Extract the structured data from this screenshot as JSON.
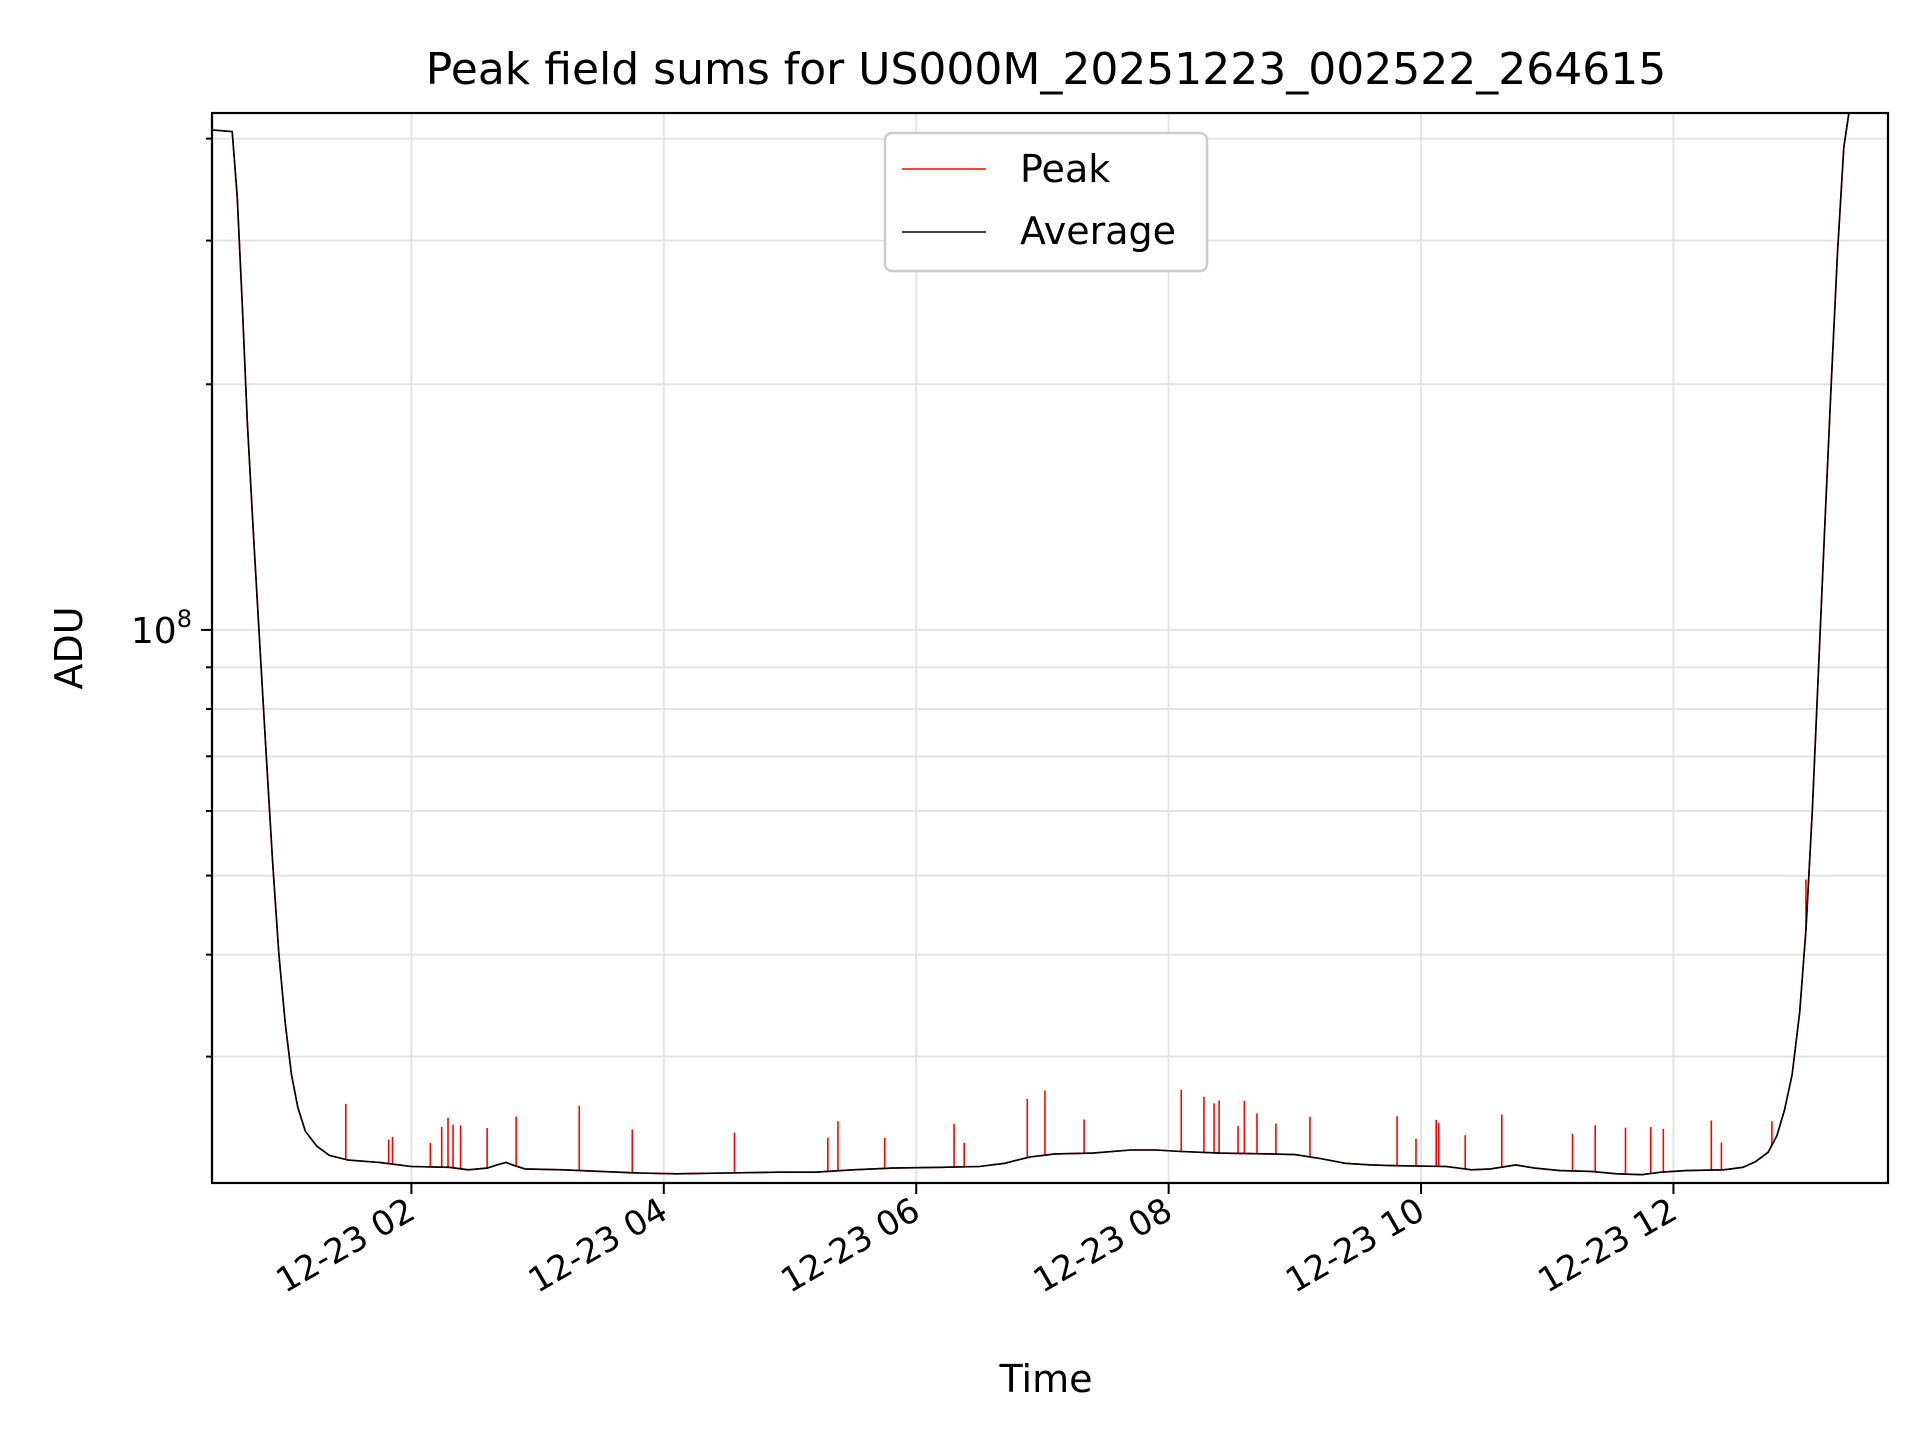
{
  "chart_data": {
    "type": "line",
    "title": "Peak field sums for US000M_20251223_002522_264615",
    "xlabel": "Time",
    "ylabel": "ADU",
    "yscale": "log",
    "ylim": [
      21000000,
      430000000
    ],
    "xlim_hours": [
      0.42,
      13.7
    ],
    "grid": true,
    "legend_position": "upper center",
    "x_ticks": [
      {
        "hour": 2,
        "label": "12-23 02"
      },
      {
        "hour": 4,
        "label": "12-23 04"
      },
      {
        "hour": 6,
        "label": "12-23 06"
      },
      {
        "hour": 8,
        "label": "12-23 08"
      },
      {
        "hour": 10,
        "label": "12-23 10"
      },
      {
        "hour": 12,
        "label": "12-23 12"
      }
    ],
    "y_tick_label": {
      "base": "10",
      "exponent": "8",
      "value": 100000000
    },
    "series": [
      {
        "name": "Peak",
        "color": "#ff0000",
        "spikes": [
          [
            1.48,
            0.17
          ],
          [
            1.82,
            0.07
          ],
          [
            1.85,
            0.08
          ],
          [
            2.15,
            0.07
          ],
          [
            2.24,
            0.12
          ],
          [
            2.29,
            0.15
          ],
          [
            2.33,
            0.13
          ],
          [
            2.39,
            0.13
          ],
          [
            2.6,
            0.12
          ],
          [
            2.83,
            0.15
          ],
          [
            3.33,
            0.2
          ],
          [
            3.75,
            0.13
          ],
          [
            4.56,
            0.12
          ],
          [
            5.3,
            0.1
          ],
          [
            5.38,
            0.15
          ],
          [
            5.75,
            0.09
          ],
          [
            6.3,
            0.13
          ],
          [
            6.38,
            0.07
          ],
          [
            6.88,
            0.18
          ],
          [
            7.02,
            0.2
          ],
          [
            7.33,
            0.1
          ],
          [
            8.1,
            0.19
          ],
          [
            8.28,
            0.17
          ],
          [
            8.36,
            0.15
          ],
          [
            8.4,
            0.16
          ],
          [
            8.55,
            0.08
          ],
          [
            8.6,
            0.16
          ],
          [
            8.7,
            0.12
          ],
          [
            8.85,
            0.09
          ],
          [
            9.12,
            0.12
          ],
          [
            9.81,
            0.15
          ],
          [
            9.96,
            0.08
          ],
          [
            10.12,
            0.14
          ],
          [
            10.14,
            0.13
          ],
          [
            10.35,
            0.1
          ],
          [
            10.64,
            0.16
          ],
          [
            11.2,
            0.11
          ],
          [
            11.38,
            0.14
          ],
          [
            11.62,
            0.14
          ],
          [
            11.82,
            0.14
          ],
          [
            11.92,
            0.13
          ],
          [
            12.3,
            0.15
          ],
          [
            12.38,
            0.08
          ],
          [
            12.78,
            0.07
          ],
          [
            13.05,
            0.15
          ]
        ]
      },
      {
        "name": "Average",
        "color": "#000000",
        "points": [
          [
            0.42,
            410000000
          ],
          [
            0.58,
            408000000
          ],
          [
            0.62,
            340000000
          ],
          [
            0.66,
            250000000
          ],
          [
            0.7,
            180000000
          ],
          [
            0.75,
            130000000
          ],
          [
            0.8,
            95000000
          ],
          [
            0.85,
            70000000
          ],
          [
            0.9,
            52000000
          ],
          [
            0.95,
            40000000
          ],
          [
            1.0,
            33000000
          ],
          [
            1.05,
            28500000
          ],
          [
            1.1,
            26000000
          ],
          [
            1.16,
            24300000
          ],
          [
            1.25,
            23300000
          ],
          [
            1.35,
            22700000
          ],
          [
            1.5,
            22400000
          ],
          [
            1.75,
            22250000
          ],
          [
            2.0,
            22000000
          ],
          [
            2.3,
            21950000
          ],
          [
            2.45,
            21800000
          ],
          [
            2.6,
            21900000
          ],
          [
            2.7,
            22150000
          ],
          [
            2.75,
            22250000
          ],
          [
            2.82,
            22050000
          ],
          [
            2.9,
            21850000
          ],
          [
            3.2,
            21800000
          ],
          [
            3.5,
            21700000
          ],
          [
            3.8,
            21600000
          ],
          [
            4.1,
            21550000
          ],
          [
            4.5,
            21600000
          ],
          [
            4.9,
            21650000
          ],
          [
            5.2,
            21650000
          ],
          [
            5.5,
            21800000
          ],
          [
            5.8,
            21900000
          ],
          [
            6.2,
            21950000
          ],
          [
            6.5,
            22000000
          ],
          [
            6.7,
            22200000
          ],
          [
            6.9,
            22600000
          ],
          [
            7.1,
            22800000
          ],
          [
            7.4,
            22850000
          ],
          [
            7.7,
            23050000
          ],
          [
            7.9,
            23050000
          ],
          [
            8.1,
            22950000
          ],
          [
            8.4,
            22850000
          ],
          [
            8.8,
            22800000
          ],
          [
            9.0,
            22750000
          ],
          [
            9.2,
            22500000
          ],
          [
            9.4,
            22200000
          ],
          [
            9.6,
            22100000
          ],
          [
            9.8,
            22050000
          ],
          [
            10.2,
            22000000
          ],
          [
            10.4,
            21800000
          ],
          [
            10.55,
            21850000
          ],
          [
            10.75,
            22100000
          ],
          [
            10.9,
            21900000
          ],
          [
            11.1,
            21750000
          ],
          [
            11.35,
            21700000
          ],
          [
            11.55,
            21550000
          ],
          [
            11.75,
            21500000
          ],
          [
            11.9,
            21650000
          ],
          [
            12.1,
            21750000
          ],
          [
            12.4,
            21800000
          ],
          [
            12.55,
            21950000
          ],
          [
            12.65,
            22300000
          ],
          [
            12.75,
            22900000
          ],
          [
            12.82,
            24000000
          ],
          [
            12.88,
            25800000
          ],
          [
            12.94,
            28500000
          ],
          [
            13.0,
            34000000
          ],
          [
            13.05,
            43000000
          ],
          [
            13.1,
            60000000
          ],
          [
            13.15,
            90000000
          ],
          [
            13.2,
            135000000
          ],
          [
            13.25,
            200000000
          ],
          [
            13.3,
            290000000
          ],
          [
            13.35,
            390000000
          ],
          [
            13.4,
            440000000
          ]
        ]
      }
    ]
  }
}
